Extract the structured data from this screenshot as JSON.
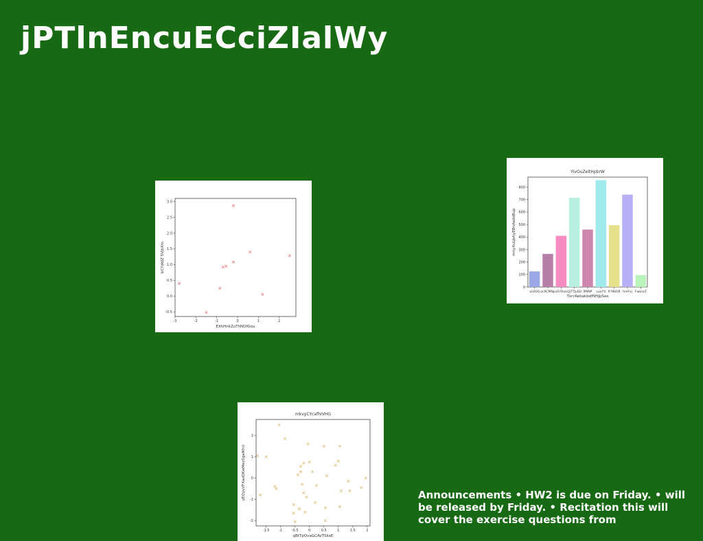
{
  "slide": {
    "title": "jPTlnEncuECciZIalWy",
    "announcements": "Announcements • HW2 is due on Friday. • will be released by Friday. • Recitation this will cover the exercise questions from"
  },
  "chart_data": [
    {
      "type": "scatter",
      "title": "",
      "xlabel": "EXhHnkZuThNOfGou",
      "ylabel": "bCYddjZ SVjbXm",
      "xlim": [
        -3.0,
        2.8
      ],
      "ylim": [
        -0.65,
        3.1
      ],
      "xticks": [
        -3,
        -2,
        -1,
        0,
        1,
        2
      ],
      "yticks": [
        -0.5,
        0.0,
        0.5,
        1.0,
        1.5,
        2.0,
        2.5,
        3.0
      ],
      "marker": "x",
      "color": "#e8888c",
      "series": [
        {
          "x": [
            -2.8,
            -1.5,
            -0.85,
            -0.7,
            -0.55,
            -0.2,
            -0.2,
            0.6,
            1.2,
            2.5
          ],
          "y": [
            0.4,
            -0.52,
            0.25,
            0.92,
            0.95,
            1.08,
            2.87,
            1.4,
            0.05,
            1.28
          ]
        }
      ]
    },
    {
      "type": "bar",
      "title": "YlvOuZeltHpbrW",
      "xlabel": "TxrcRebakbdfNHJpSex",
      "ylabel": "mnyXuLJehyEBnAodoBup",
      "ylim": [
        0,
        880
      ],
      "yticks": [
        0,
        100,
        200,
        300,
        400,
        500,
        600,
        700,
        800
      ],
      "categories": [
        "xLVOG",
        "ocXCMNp",
        "xEYKxo",
        "QjTTJuSU",
        "IMINP",
        "LaoTd",
        "If MbUB",
        "hmFxj",
        "FwkroZ"
      ],
      "values": [
        125,
        265,
        410,
        715,
        460,
        855,
        495,
        740,
        95
      ],
      "colors": [
        "#9aa8e6",
        "#b77ea8",
        "#f68bc4",
        "#b7f0e0",
        "#cf86ac",
        "#9feaea",
        "#e6e08a",
        "#b8b0f4",
        "#b8f4bc"
      ]
    },
    {
      "type": "scatter",
      "title": "mkvyCYcafhIVHG",
      "xlabel": "qBtTpQvaGCAvTSiiaE",
      "ylabel": "yEQyuVFXaeDKwMezSgaIKhU",
      "xlim": [
        -1.85,
        2.1
      ],
      "ylim": [
        -2.25,
        2.75
      ],
      "xticks": [
        -1.5,
        -1.0,
        -0.5,
        0.0,
        0.5,
        1.0,
        1.5,
        2.0
      ],
      "yticks": [
        -2,
        -1,
        0,
        1,
        2
      ],
      "marker": "x",
      "color": "#e0c080",
      "series": [
        {
          "x": [
            -1.8,
            -1.7,
            -1.5,
            -1.2,
            -1.15,
            -1.05,
            -0.85,
            -0.55,
            -0.55,
            -0.5,
            -0.4,
            -0.35,
            -0.3,
            -0.3,
            -0.25,
            -0.2,
            -0.2,
            -0.15,
            -0.1,
            -0.05,
            0.0,
            0.1,
            0.2,
            0.25,
            0.5,
            0.55,
            0.55,
            0.6,
            0.9,
            1.0,
            1.05,
            1.05,
            1.1,
            1.35,
            1.4,
            1.8,
            1.95
          ],
          "y": [
            1.05,
            -0.8,
            1.0,
            -0.4,
            -0.5,
            2.5,
            1.85,
            -1.25,
            -1.65,
            -2.05,
            0.15,
            -1.45,
            0.55,
            0.3,
            -0.3,
            0.7,
            -0.7,
            -1.6,
            -0.9,
            1.6,
            0.75,
            0.3,
            -1.15,
            -0.35,
            1.5,
            -1.4,
            -2.0,
            0.1,
            0.6,
            0.8,
            1.5,
            -1.35,
            -0.6,
            -0.15,
            -0.6,
            -0.45,
            0.0
          ]
        }
      ]
    }
  ]
}
